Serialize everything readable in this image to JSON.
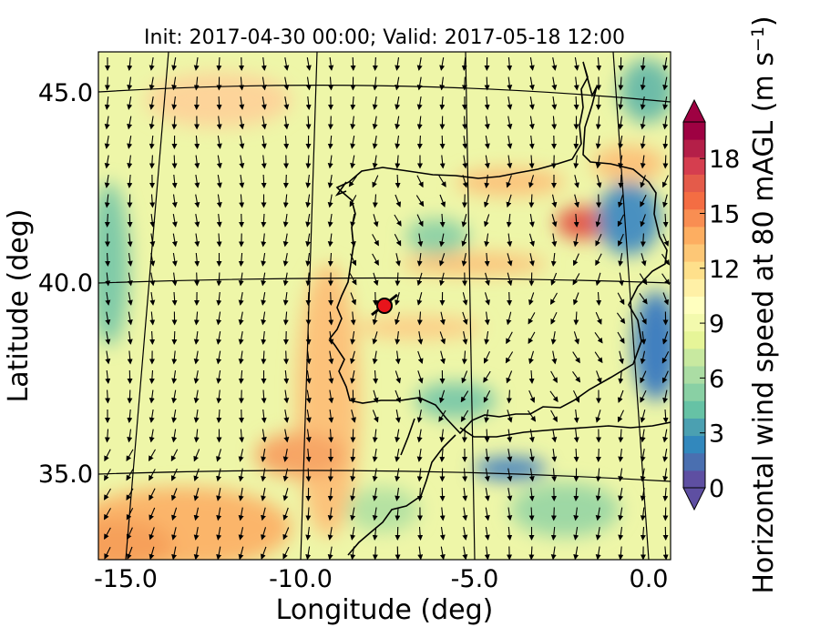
{
  "figure": {
    "title": "Init: 2017-04-30 00:00; Valid: 2017-05-18 12:00",
    "xlabel": "Longitude (deg)",
    "ylabel": "Latitude (deg)",
    "x_ticks": [
      "-15.0",
      "-10.0",
      "-5.0",
      "0.0"
    ],
    "y_ticks": [
      "45.0",
      "40.0",
      "35.0"
    ]
  },
  "colorbar": {
    "label_main": "Horizontal wind speed at 80 mAGL (m s",
    "label_sup": "−1",
    "label_end": ")",
    "ticks": [
      "0",
      "3",
      "6",
      "9",
      "12",
      "15",
      "18"
    ],
    "min": 0,
    "max": 20,
    "colors": [
      "#5e4fa2",
      "#4a6fb0",
      "#3288bd",
      "#4ba0b1",
      "#66c2a5",
      "#89d0a4",
      "#abdda4",
      "#c8e9a0",
      "#e6f598",
      "#f3faad",
      "#ffffbf",
      "#fff0a6",
      "#fee08b",
      "#fdc776",
      "#fdae61",
      "#f98e52",
      "#f46d43",
      "#e45b4a",
      "#d53e4f",
      "#b41f48",
      "#9e0142"
    ]
  },
  "marker": {
    "color": "#e8141b"
  }
}
